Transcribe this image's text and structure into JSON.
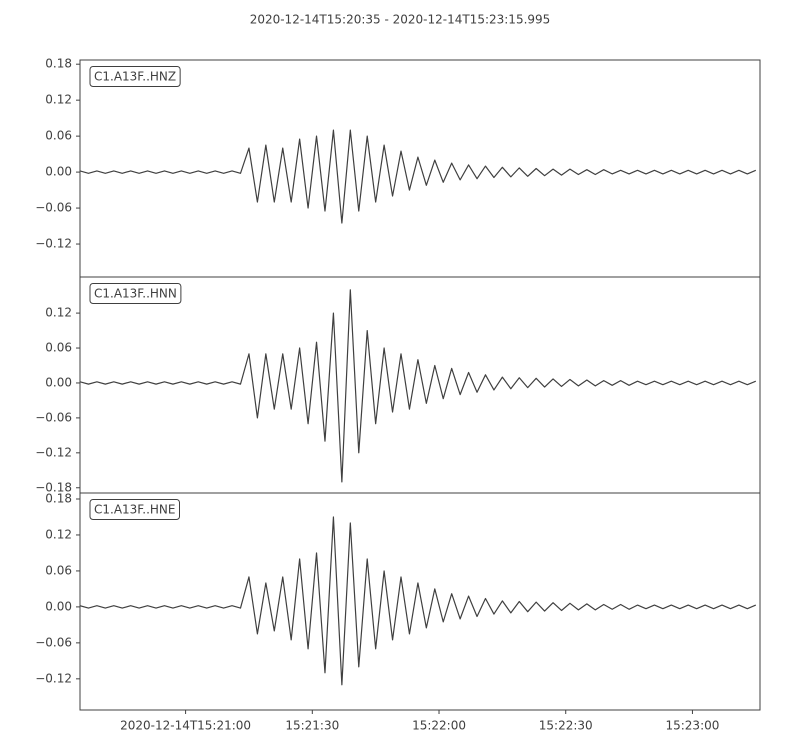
{
  "chart_data": {
    "type": "line",
    "title": "2020-12-14T15:20:35  -  2020-12-14T15:23:15.995",
    "xlim": [
      "2020-12-14T15:20:35",
      "2020-12-14T15:23:15.995"
    ],
    "xticks": [
      "2020-12-14T15:21:00",
      {
        "value": "2020-12-14T15:21:30",
        "label": "15:21:30"
      },
      {
        "value": "2020-12-14T15:22:00",
        "label": "15:22:00"
      },
      {
        "value": "2020-12-14T15:22:30",
        "label": "15:22:30"
      },
      {
        "value": "2020-12-14T15:23:00",
        "label": "15:23:00"
      }
    ],
    "x": [
      "2020-12-14T15:20:35",
      "2020-12-14T15:20:37",
      "2020-12-14T15:20:39",
      "2020-12-14T15:20:41",
      "2020-12-14T15:20:43",
      "2020-12-14T15:20:45",
      "2020-12-14T15:20:47",
      "2020-12-14T15:20:49",
      "2020-12-14T15:20:51",
      "2020-12-14T15:20:53",
      "2020-12-14T15:20:55",
      "2020-12-14T15:20:57",
      "2020-12-14T15:20:59",
      "2020-12-14T15:21:01",
      "2020-12-14T15:21:03",
      "2020-12-14T15:21:05",
      "2020-12-14T15:21:07",
      "2020-12-14T15:21:09",
      "2020-12-14T15:21:11",
      "2020-12-14T15:21:13",
      "2020-12-14T15:21:15",
      "2020-12-14T15:21:17",
      "2020-12-14T15:21:19",
      "2020-12-14T15:21:21",
      "2020-12-14T15:21:23",
      "2020-12-14T15:21:25",
      "2020-12-14T15:21:27",
      "2020-12-14T15:21:29",
      "2020-12-14T15:21:31",
      "2020-12-14T15:21:33",
      "2020-12-14T15:21:35",
      "2020-12-14T15:21:37",
      "2020-12-14T15:21:39",
      "2020-12-14T15:21:41",
      "2020-12-14T15:21:43",
      "2020-12-14T15:21:45",
      "2020-12-14T15:21:47",
      "2020-12-14T15:21:49",
      "2020-12-14T15:21:51",
      "2020-12-14T15:21:53",
      "2020-12-14T15:21:55",
      "2020-12-14T15:21:57",
      "2020-12-14T15:21:59",
      "2020-12-14T15:22:01",
      "2020-12-14T15:22:03",
      "2020-12-14T15:22:05",
      "2020-12-14T15:22:07",
      "2020-12-14T15:22:09",
      "2020-12-14T15:22:11",
      "2020-12-14T15:22:13",
      "2020-12-14T15:22:15",
      "2020-12-14T15:22:17",
      "2020-12-14T15:22:19",
      "2020-12-14T15:22:21",
      "2020-12-14T15:22:23",
      "2020-12-14T15:22:25",
      "2020-12-14T15:22:27",
      "2020-12-14T15:22:29",
      "2020-12-14T15:22:31",
      "2020-12-14T15:22:33",
      "2020-12-14T15:22:35",
      "2020-12-14T15:22:37",
      "2020-12-14T15:22:39",
      "2020-12-14T15:22:41",
      "2020-12-14T15:22:43",
      "2020-12-14T15:22:45",
      "2020-12-14T15:22:47",
      "2020-12-14T15:22:49",
      "2020-12-14T15:22:51",
      "2020-12-14T15:22:53",
      "2020-12-14T15:22:55",
      "2020-12-14T15:22:57",
      "2020-12-14T15:22:59",
      "2020-12-14T15:23:01",
      "2020-12-14T15:23:03",
      "2020-12-14T15:23:05",
      "2020-12-14T15:23:07",
      "2020-12-14T15:23:09",
      "2020-12-14T15:23:11",
      "2020-12-14T15:23:13",
      "2020-12-14T15:23:15"
    ],
    "series": [
      {
        "name": "C1.A13F..HNZ",
        "color": "#404040",
        "ylim": [
          -0.175,
          0.187
        ],
        "yticks": [
          0.18,
          0.12,
          0.06,
          {
            "value": 0,
            "label": "0.00"
          },
          {
            "value": -0.06,
            "label": "−0.06"
          },
          {
            "value": -0.12,
            "label": "−0.12"
          }
        ],
        "values": [
          0.002,
          -0.002,
          0.002,
          -0.002,
          0.002,
          -0.002,
          0.002,
          -0.002,
          0.002,
          -0.002,
          0.002,
          -0.002,
          0.002,
          -0.002,
          0.002,
          -0.002,
          0.002,
          -0.002,
          0.002,
          -0.002,
          0.04,
          -0.05,
          0.045,
          -0.05,
          0.04,
          -0.05,
          0.055,
          -0.06,
          0.06,
          -0.065,
          0.07,
          -0.085,
          0.07,
          -0.065,
          0.06,
          -0.05,
          0.045,
          -0.04,
          0.035,
          -0.03,
          0.025,
          -0.022,
          0.02,
          -0.017,
          0.015,
          -0.013,
          0.012,
          -0.011,
          0.01,
          -0.009,
          0.008,
          -0.008,
          0.007,
          -0.007,
          0.006,
          -0.006,
          0.005,
          -0.005,
          0.005,
          -0.004,
          0.004,
          -0.004,
          0.004,
          -0.003,
          0.003,
          -0.003,
          0.003,
          -0.003,
          0.003,
          -0.003,
          0.003,
          -0.003,
          0.003,
          -0.003,
          0.003,
          -0.003,
          0.003,
          -0.003,
          0.003,
          -0.003,
          0.003
        ]
      },
      {
        "name": "C1.A13F..HNN",
        "color": "#404040",
        "ylim": [
          -0.189,
          0.182
        ],
        "yticks": [
          0.12,
          0.06,
          {
            "value": 0,
            "label": "0.00"
          },
          {
            "value": -0.06,
            "label": "−0.06"
          },
          {
            "value": -0.12,
            "label": "−0.12"
          },
          {
            "value": -0.18,
            "label": "−0.18"
          }
        ],
        "values": [
          0.002,
          -0.002,
          0.002,
          -0.002,
          0.002,
          -0.002,
          0.002,
          -0.002,
          0.002,
          -0.002,
          0.002,
          -0.002,
          0.002,
          -0.002,
          0.002,
          -0.002,
          0.002,
          -0.002,
          0.002,
          -0.002,
          0.05,
          -0.06,
          0.05,
          -0.045,
          0.05,
          -0.045,
          0.06,
          -0.07,
          0.07,
          -0.1,
          0.12,
          -0.17,
          0.16,
          -0.12,
          0.09,
          -0.07,
          0.06,
          -0.05,
          0.05,
          -0.045,
          0.04,
          -0.035,
          0.03,
          -0.027,
          0.025,
          -0.02,
          0.018,
          -0.016,
          0.014,
          -0.012,
          0.01,
          -0.01,
          0.009,
          -0.008,
          0.008,
          -0.007,
          0.007,
          -0.006,
          0.006,
          -0.005,
          0.005,
          -0.005,
          0.004,
          -0.004,
          0.004,
          -0.004,
          0.003,
          -0.003,
          0.003,
          -0.003,
          0.003,
          -0.003,
          0.003,
          -0.003,
          0.003,
          -0.003,
          0.003,
          -0.003,
          0.003,
          -0.003,
          0.003
        ]
      },
      {
        "name": "C1.A13F..HNE",
        "color": "#404040",
        "ylim": [
          -0.172,
          0.19
        ],
        "yticks": [
          0.18,
          0.12,
          0.06,
          {
            "value": 0,
            "label": "0.00"
          },
          {
            "value": -0.06,
            "label": "−0.06"
          },
          {
            "value": -0.12,
            "label": "−0.12"
          }
        ],
        "values": [
          0.002,
          -0.002,
          0.002,
          -0.002,
          0.002,
          -0.002,
          0.002,
          -0.002,
          0.002,
          -0.002,
          0.002,
          -0.002,
          0.002,
          -0.002,
          0.002,
          -0.002,
          0.002,
          -0.002,
          0.002,
          -0.002,
          0.05,
          -0.045,
          0.04,
          -0.04,
          0.05,
          -0.055,
          0.08,
          -0.07,
          0.09,
          -0.11,
          0.15,
          -0.13,
          0.14,
          -0.1,
          0.08,
          -0.07,
          0.06,
          -0.055,
          0.05,
          -0.045,
          0.04,
          -0.035,
          0.03,
          -0.025,
          0.022,
          -0.02,
          0.018,
          -0.016,
          0.014,
          -0.012,
          0.01,
          -0.01,
          0.009,
          -0.008,
          0.008,
          -0.007,
          0.007,
          -0.006,
          0.006,
          -0.005,
          0.005,
          -0.005,
          0.004,
          -0.004,
          0.004,
          -0.004,
          0.003,
          -0.003,
          0.003,
          -0.003,
          0.003,
          -0.003,
          0.003,
          -0.003,
          0.003,
          -0.003,
          0.003,
          -0.003,
          0.003,
          -0.003,
          0.003
        ]
      }
    ]
  }
}
